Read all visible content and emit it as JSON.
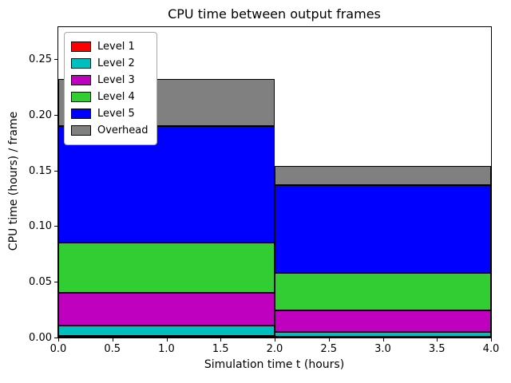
{
  "figure": {
    "title": "CPU time between output frames",
    "xlabel": "Simulation time t (hours)",
    "ylabel": "CPU time (hours) / frame"
  },
  "chart_data": {
    "type": "bar",
    "stacked": true,
    "title": "CPU time between output frames",
    "xlabel": "Simulation time t (hours)",
    "ylabel": "CPU time (hours) / frame",
    "grid": false,
    "legend_position": "upper left",
    "xlim": [
      0.0,
      4.0
    ],
    "ylim": [
      0.0,
      0.2786
    ],
    "xticks": [
      0.0,
      0.5,
      1.0,
      1.5,
      2.0,
      2.5,
      3.0,
      3.5,
      4.0
    ],
    "xtick_labels": [
      "0.0",
      "0.5",
      "1.0",
      "1.5",
      "2.0",
      "2.5",
      "3.0",
      "3.5",
      "4.0"
    ],
    "yticks": [
      0.0,
      0.05,
      0.1,
      0.15,
      0.2,
      0.25
    ],
    "ytick_labels": [
      "0.00",
      "0.05",
      "0.10",
      "0.15",
      "0.20",
      "0.25"
    ],
    "bins": [
      [
        0.0,
        2.0
      ],
      [
        2.0,
        4.0
      ]
    ],
    "bin_totals": [
      0.232,
      0.154
    ],
    "series": [
      {
        "name": "Level 1",
        "color": "#ff0000",
        "values": [
          0.0015,
          0.001
        ]
      },
      {
        "name": "Level 2",
        "color": "#00bfbf",
        "values": [
          0.0095,
          0.004
        ]
      },
      {
        "name": "Level 3",
        "color": "#bf00bf",
        "values": [
          0.029,
          0.019
        ]
      },
      {
        "name": "Level 4",
        "color": "#32cd32",
        "values": [
          0.045,
          0.034
        ]
      },
      {
        "name": "Level 5",
        "color": "#0000ff",
        "values": [
          0.105,
          0.079
        ]
      },
      {
        "name": "Overhead",
        "color": "#808080",
        "values": [
          0.042,
          0.017
        ]
      }
    ]
  }
}
